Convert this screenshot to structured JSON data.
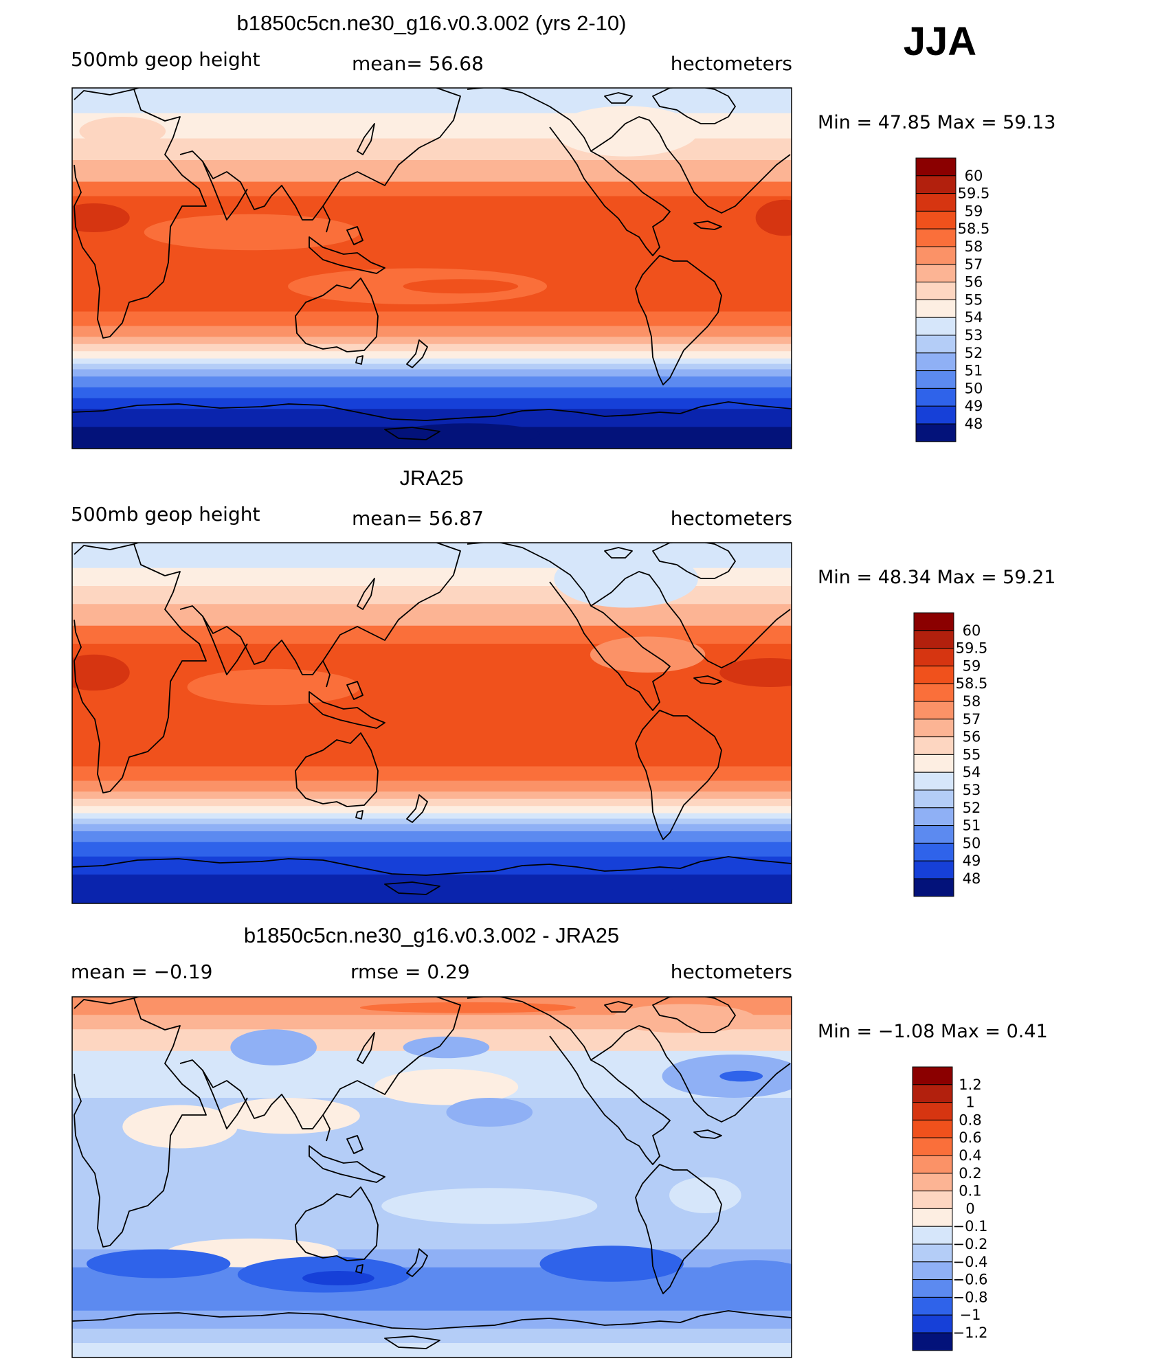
{
  "season": "JJA",
  "panels": [
    {
      "title": "b1850c5cn.ne30_g16.v0.3.002 (yrs 2-10)",
      "left_text": "500mb  geop  height",
      "center_text": "mean=   56.68",
      "units": "hectometers",
      "minmax": "Min  =    47.85  Max  =    59.13",
      "field": "model"
    },
    {
      "title": "JRA25",
      "left_text": "500mb  geop  height",
      "center_text": "mean=   56.87",
      "units": "hectometers",
      "minmax": "Min  =    48.34  Max  =    59.21",
      "field": "obs"
    },
    {
      "title": "b1850c5cn.ne30_g16.v0.3.002 - JRA25",
      "left_text": "mean  =     −0.19",
      "center_text": "rmse  =      0.29",
      "units": "hectometers",
      "minmax": "Min  =    −1.08  Max  =      0.41",
      "field": "diff"
    }
  ],
  "colorbars": {
    "abs": {
      "labels": [
        "60",
        "59.5",
        "59",
        "58.5",
        "58",
        "57",
        "56",
        "55",
        "54",
        "53",
        "52",
        "51",
        "50",
        "49",
        "48"
      ],
      "colors": [
        "#8b0000",
        "#b2200d",
        "#d63511",
        "#f0511c",
        "#fa6f3a",
        "#fb9267",
        "#fcb494",
        "#fdd6c1",
        "#fdeee2",
        "#d6e6fa",
        "#b4cdf7",
        "#8fb0f5",
        "#5c8af0",
        "#2f63ea",
        "#1640d8",
        "#0a24ad",
        "#03127a"
      ]
    },
    "diff": {
      "labels": [
        "1.2",
        "1",
        "0.8",
        "0.6",
        "0.4",
        "0.2",
        "0.1",
        "0",
        "−0.1",
        "−0.2",
        "−0.4",
        "−0.6",
        "−0.8",
        "−1",
        "−1.2"
      ],
      "colors": [
        "#8b0000",
        "#b2200d",
        "#d63511",
        "#f0511c",
        "#fa6f3a",
        "#fb9267",
        "#fcb494",
        "#fdd6c1",
        "#fdeee2",
        "#d6e6fa",
        "#b4cdf7",
        "#8fb0f5",
        "#5c8af0",
        "#2f63ea",
        "#1640d8",
        "#0a24ad",
        "#03127a"
      ]
    }
  }
}
